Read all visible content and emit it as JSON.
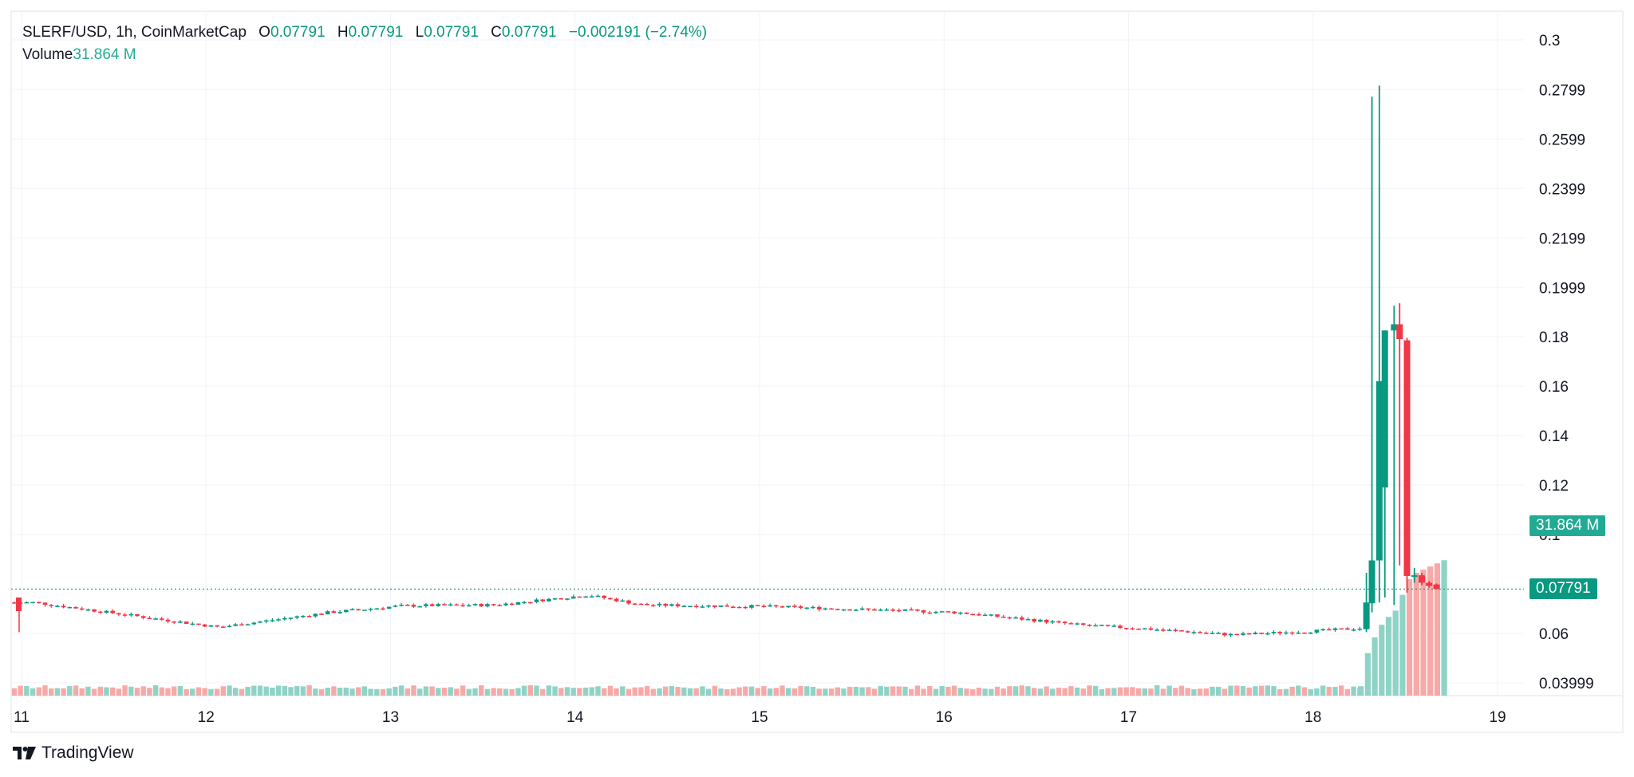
{
  "header": {
    "symbol_line": "SLERF/USD, 1h, CoinMarketCap",
    "o_label": "O",
    "o_value": "0.07791",
    "h_label": "H",
    "h_value": "0.07791",
    "l_label": "L",
    "l_value": "0.07791",
    "c_label": "C",
    "c_value": "0.07791",
    "change": "−0.002191 (−2.74%)"
  },
  "volume": {
    "label": "Volume",
    "value": "31.864 M"
  },
  "badges": {
    "volume": "31.864 M",
    "price": "0.07791"
  },
  "branding": {
    "name": "TradingView"
  },
  "colors": {
    "up": "#089981",
    "down": "#f23645",
    "vol_up": "#8fd3c6",
    "vol_down": "#f7a9a7",
    "grid": "#f0f3fa"
  },
  "chart_data": {
    "type": "candlestick",
    "title": "SLERF/USD, 1h, CoinMarketCap",
    "x_ticks": [
      "11",
      "12",
      "13",
      "14",
      "15",
      "16",
      "17",
      "18",
      "19"
    ],
    "y_ticks": [
      "0.3",
      "0.2799",
      "0.2599",
      "0.2399",
      "0.2199",
      "0.1999",
      "0.18",
      "0.16",
      "0.14",
      "0.12",
      "0.1",
      "0.06",
      "0.03999"
    ],
    "ylim": [
      0.035,
      0.3
    ],
    "last_price": 0.07791,
    "volume_last": "31.864 M",
    "daily_closes": [
      {
        "day": "11",
        "price": 0.0725
      },
      {
        "day": "12",
        "price": 0.0625
      },
      {
        "day": "12.6",
        "price": 0.0685
      },
      {
        "day": "13",
        "price": 0.0712
      },
      {
        "day": "13.5",
        "price": 0.0715
      },
      {
        "day": "14",
        "price": 0.0755
      },
      {
        "day": "14.3",
        "price": 0.0715
      },
      {
        "day": "15",
        "price": 0.0708
      },
      {
        "day": "16",
        "price": 0.0685
      },
      {
        "day": "16.7",
        "price": 0.0632
      },
      {
        "day": "17",
        "price": 0.062
      },
      {
        "day": "17.5",
        "price": 0.0594
      },
      {
        "day": "18",
        "price": 0.0612
      },
      {
        "day": "18.2",
        "price": 0.0622
      }
    ],
    "spike_candles": [
      {
        "t": "18.22",
        "o": 0.0617,
        "h": 0.0845,
        "l": 0.0605,
        "c": 0.0725
      },
      {
        "t": "18.25",
        "o": 0.0722,
        "h": 0.277,
        "l": 0.0685,
        "c": 0.0895
      },
      {
        "t": "18.29",
        "o": 0.0895,
        "h": 0.2815,
        "l": 0.0725,
        "c": 0.162
      },
      {
        "t": "18.32",
        "o": 0.119,
        "h": 0.1825,
        "l": 0.0745,
        "c": 0.1825
      },
      {
        "t": "18.37",
        "o": 0.1825,
        "h": 0.1925,
        "l": 0.0715,
        "c": 0.185
      },
      {
        "t": "18.40",
        "o": 0.185,
        "h": 0.1935,
        "l": 0.0875,
        "c": 0.179
      },
      {
        "t": "18.44",
        "o": 0.1785,
        "h": 0.1795,
        "l": 0.0765,
        "c": 0.0832
      },
      {
        "t": "18.48",
        "o": 0.0832,
        "h": 0.0865,
        "l": 0.0805,
        "c": 0.0835
      },
      {
        "t": "18.52",
        "o": 0.0835,
        "h": 0.0845,
        "l": 0.0795,
        "c": 0.0805
      },
      {
        "t": "18.56",
        "o": 0.0805,
        "h": 0.0812,
        "l": 0.0785,
        "c": 0.0792
      },
      {
        "t": "18.60",
        "o": 0.0798,
        "h": 0.0802,
        "l": 0.0779,
        "c": 0.07791
      }
    ],
    "spike_volume_fraction": [
      0.06,
      0.27,
      0.37,
      0.45,
      0.5,
      0.54,
      0.64,
      0.74,
      0.78,
      0.8,
      0.82,
      0.84,
      0.86
    ]
  }
}
